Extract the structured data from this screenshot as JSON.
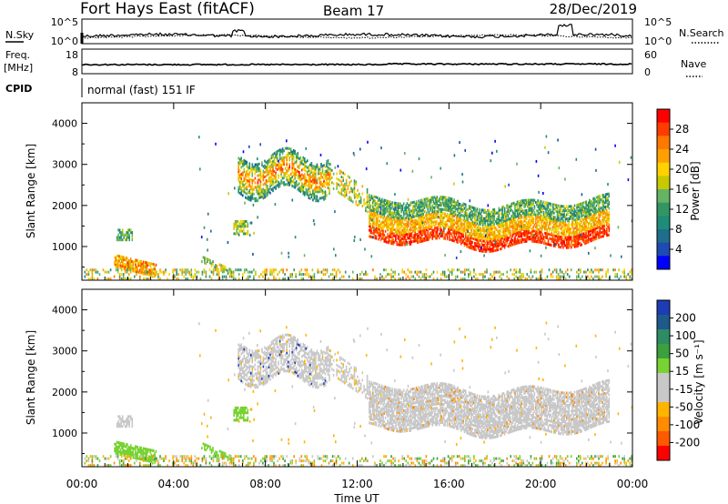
{
  "header": {
    "station": "Fort Hays East (fitACF)",
    "beam": "Beam 17",
    "date": "28/Dec/2019"
  },
  "top_panels": {
    "nsky_label": "N.Sky",
    "nsearch_label": "N.Search",
    "noise_ticks": [
      "10^5",
      "10^0"
    ],
    "noise_ticks_right": [
      "10^5",
      "10^0"
    ],
    "freq_label_1": "Freq.",
    "freq_label_2": "[MHz]",
    "freq_ticks": [
      "18",
      "8"
    ],
    "nave_label": "Nave",
    "nave_ticks": [
      "60",
      "0"
    ],
    "cpid_label": "CPID",
    "cpid_text": "normal (fast) 151 IF"
  },
  "power_colorbar": {
    "title": "Power [dB]",
    "ticks": [
      "28",
      "24",
      "20",
      "16",
      "12",
      "8",
      "4"
    ],
    "colors": [
      "#ff0000",
      "#ff3c00",
      "#ff7800",
      "#ffa000",
      "#ffd200",
      "#c8c800",
      "#64b464",
      "#329664",
      "#1e8c78",
      "#1e6e8c",
      "#1e4ab4",
      "#0000ff"
    ]
  },
  "velocity_colorbar": {
    "title": "Velocity [m s⁻¹]",
    "ticks": [
      "200",
      "100",
      "50",
      "15",
      "-15",
      "-50",
      "-100",
      "-200"
    ],
    "colors": [
      "#1e3cb4",
      "#1e5a8c",
      "#2d8c64",
      "#3ca03c",
      "#78d232",
      "#c8c8c8",
      "#c8c8c8",
      "#ffb400",
      "#ff8c00",
      "#ff5a00",
      "#ff0000"
    ]
  },
  "chart_data": [
    {
      "type": "heatmap",
      "name": "power",
      "ylabel": "Slant Range [km]",
      "yticks": [
        "4000",
        "3000",
        "2000",
        "1000"
      ],
      "xticks": [
        "00:00",
        "04:00",
        "08:00",
        "12:00",
        "16:00",
        "20:00",
        "00:00"
      ],
      "ylim": [
        180,
        4500
      ],
      "xlim_hours": [
        0,
        24
      ],
      "series": [
        {
          "region": "evening band",
          "x_hours": [
            6.8,
            10.8
          ],
          "range_km": [
            2200,
            3300
          ],
          "power_db": 18
        },
        {
          "region": "main band",
          "x_hours": [
            12.5,
            23.0
          ],
          "range_km": [
            1100,
            2000
          ],
          "power_db": 22
        },
        {
          "region": "patch",
          "x_hours": [
            1.5,
            2.2
          ],
          "range_km": [
            1100,
            1400
          ],
          "power_db": 10
        },
        {
          "region": "near range",
          "x_hours": [
            1.4,
            3.2
          ],
          "range_km": [
            200,
            800
          ],
          "power_db": 18
        }
      ]
    },
    {
      "type": "heatmap",
      "name": "velocity",
      "ylabel": "Slant Range [km]",
      "yticks": [
        "4000",
        "3000",
        "2000",
        "1000"
      ],
      "xticks": [
        "00:00",
        "04:00",
        "08:00",
        "12:00",
        "16:00",
        "20:00",
        "00:00"
      ],
      "xlabel": "Time UT",
      "ylim": [
        180,
        4500
      ],
      "xlim_hours": [
        0,
        24
      ]
    }
  ]
}
